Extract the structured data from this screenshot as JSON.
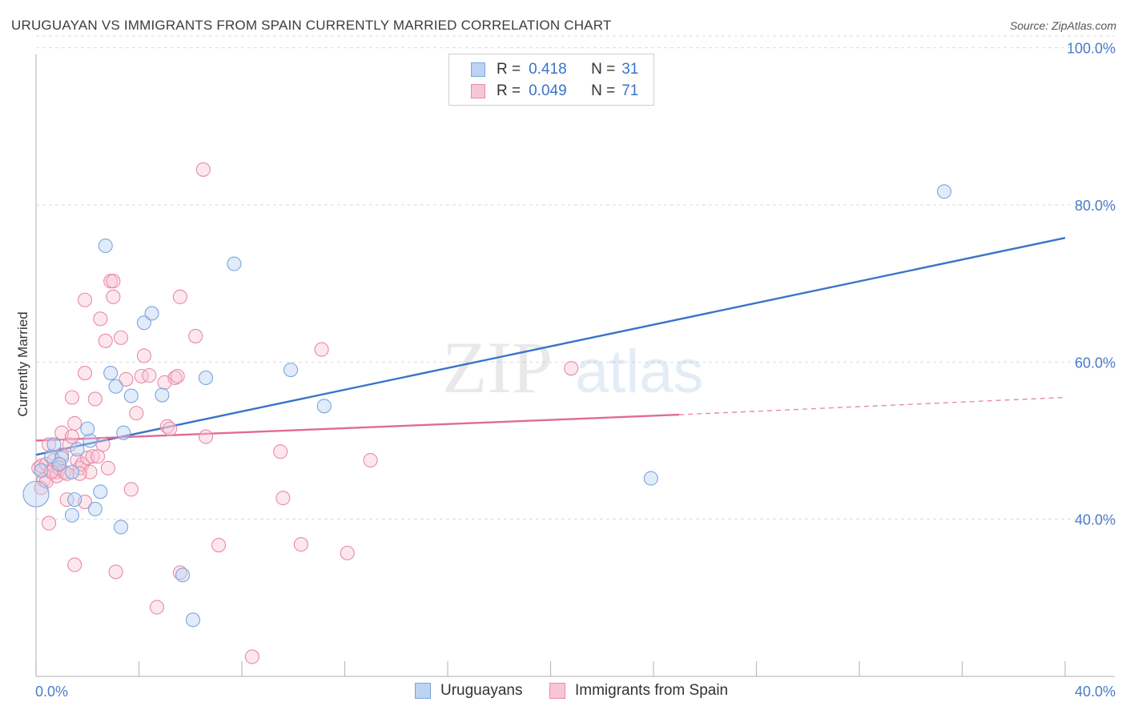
{
  "header": {
    "title": "URUGUAYAN VS IMMIGRANTS FROM SPAIN CURRENTLY MARRIED CORRELATION CHART",
    "source": "Source: ZipAtlas.com"
  },
  "watermark": {
    "zip": "ZIP",
    "atlas": "atlas"
  },
  "legend_top": {
    "rows": [
      {
        "r_label": "R =",
        "r_value": "0.418",
        "n_label": "N =",
        "n_value": "31",
        "color": "#7aa6e0",
        "fill": "#bcd3f2"
      },
      {
        "r_label": "R =",
        "r_value": "0.049",
        "n_label": "N =",
        "n_value": "71",
        "color": "#e98aa8",
        "fill": "#f7c6d5"
      }
    ]
  },
  "legend_bottom": {
    "items": [
      {
        "label": "Uruguayans",
        "color": "#7aa6e0",
        "fill": "#bcd3f2"
      },
      {
        "label": "Immigrants from Spain",
        "color": "#e98aa8",
        "fill": "#f7c6d5"
      }
    ]
  },
  "chart_data": {
    "type": "scatter",
    "title": "URUGUAYAN VS IMMIGRANTS FROM SPAIN CURRENTLY MARRIED CORRELATION CHART",
    "xlabel": "",
    "ylabel": "Currently Married",
    "xlim": [
      0,
      40
    ],
    "ylim": [
      20,
      102
    ],
    "x_tick_labels": [
      "0.0%",
      "40.0%"
    ],
    "y_ticks": [
      40,
      60,
      80,
      100
    ],
    "y_tick_labels": [
      "40.0%",
      "60.0%",
      "80.0%",
      "100.0%"
    ],
    "grid": true,
    "legend_position": "top-center",
    "series": [
      {
        "name": "Uruguayans",
        "color": "#3a74c8",
        "points": [
          [
            0.0,
            43.2
          ],
          [
            0.6,
            48.0
          ],
          [
            0.7,
            49.5
          ],
          [
            1.0,
            47.8
          ],
          [
            1.4,
            46.0
          ],
          [
            1.6,
            48.9
          ],
          [
            1.5,
            42.5
          ],
          [
            2.1,
            50.0
          ],
          [
            2.0,
            51.5
          ],
          [
            1.4,
            40.5
          ],
          [
            2.3,
            41.3
          ],
          [
            2.5,
            43.5
          ],
          [
            2.7,
            74.8
          ],
          [
            2.9,
            58.6
          ],
          [
            3.1,
            56.9
          ],
          [
            3.4,
            51.0
          ],
          [
            3.3,
            39.0
          ],
          [
            3.7,
            55.7
          ],
          [
            4.2,
            65.0
          ],
          [
            4.5,
            66.2
          ],
          [
            4.9,
            55.8
          ],
          [
            5.7,
            32.9
          ],
          [
            6.1,
            27.2
          ],
          [
            6.6,
            58.0
          ],
          [
            7.7,
            72.5
          ],
          [
            9.9,
            59.0
          ],
          [
            11.2,
            54.4
          ],
          [
            23.9,
            45.2
          ],
          [
            35.3,
            81.7
          ],
          [
            0.2,
            46.2
          ],
          [
            0.9,
            47.0
          ]
        ],
        "trend": {
          "x": [
            0,
            40
          ],
          "y": [
            48.2,
            75.8
          ]
        }
      },
      {
        "name": "Immigrants from Spain",
        "color": "#e06b94",
        "points": [
          [
            0.1,
            46.5
          ],
          [
            0.2,
            44.0
          ],
          [
            0.2,
            46.8
          ],
          [
            0.3,
            45.0
          ],
          [
            0.4,
            44.8
          ],
          [
            0.4,
            47.0
          ],
          [
            0.5,
            49.5
          ],
          [
            0.5,
            39.5
          ],
          [
            0.6,
            46.2
          ],
          [
            0.7,
            47.5
          ],
          [
            0.8,
            46.0
          ],
          [
            0.8,
            45.5
          ],
          [
            0.9,
            46.5
          ],
          [
            1.0,
            48.2
          ],
          [
            1.0,
            51.0
          ],
          [
            1.1,
            46.0
          ],
          [
            1.2,
            42.5
          ],
          [
            1.3,
            49.5
          ],
          [
            1.4,
            55.5
          ],
          [
            1.4,
            50.5
          ],
          [
            1.5,
            52.2
          ],
          [
            1.5,
            34.2
          ],
          [
            1.6,
            47.5
          ],
          [
            1.7,
            46.5
          ],
          [
            1.8,
            47.0
          ],
          [
            1.9,
            42.2
          ],
          [
            1.9,
            58.6
          ],
          [
            1.9,
            67.9
          ],
          [
            2.0,
            47.8
          ],
          [
            2.1,
            46.0
          ],
          [
            2.2,
            48.0
          ],
          [
            2.3,
            55.3
          ],
          [
            2.4,
            48.0
          ],
          [
            2.5,
            65.5
          ],
          [
            2.6,
            49.5
          ],
          [
            2.7,
            62.7
          ],
          [
            2.9,
            70.3
          ],
          [
            3.0,
            70.3
          ],
          [
            3.0,
            68.3
          ],
          [
            3.1,
            33.3
          ],
          [
            3.3,
            63.1
          ],
          [
            3.5,
            57.8
          ],
          [
            3.7,
            43.8
          ],
          [
            3.9,
            53.5
          ],
          [
            4.1,
            58.2
          ],
          [
            4.2,
            60.8
          ],
          [
            4.4,
            58.3
          ],
          [
            4.7,
            28.8
          ],
          [
            5.0,
            57.4
          ],
          [
            5.1,
            51.8
          ],
          [
            5.2,
            51.5
          ],
          [
            5.4,
            58.0
          ],
          [
            5.5,
            58.2
          ],
          [
            5.6,
            68.3
          ],
          [
            5.6,
            33.2
          ],
          [
            6.2,
            63.3
          ],
          [
            6.6,
            50.5
          ],
          [
            6.5,
            84.5
          ],
          [
            7.1,
            36.7
          ],
          [
            8.4,
            22.5
          ],
          [
            9.5,
            48.6
          ],
          [
            9.6,
            42.7
          ],
          [
            10.3,
            36.8
          ],
          [
            11.1,
            61.6
          ],
          [
            12.1,
            35.7
          ],
          [
            13.0,
            47.5
          ],
          [
            20.8,
            59.2
          ],
          [
            1.2,
            45.8
          ],
          [
            0.6,
            46.0
          ],
          [
            2.8,
            46.5
          ],
          [
            1.7,
            45.8
          ]
        ],
        "trend": {
          "x": [
            0,
            25
          ],
          "y": [
            50.0,
            53.3
          ]
        },
        "trend_extension": {
          "x": [
            25,
            40
          ],
          "y": [
            53.3,
            55.5
          ]
        }
      }
    ]
  }
}
